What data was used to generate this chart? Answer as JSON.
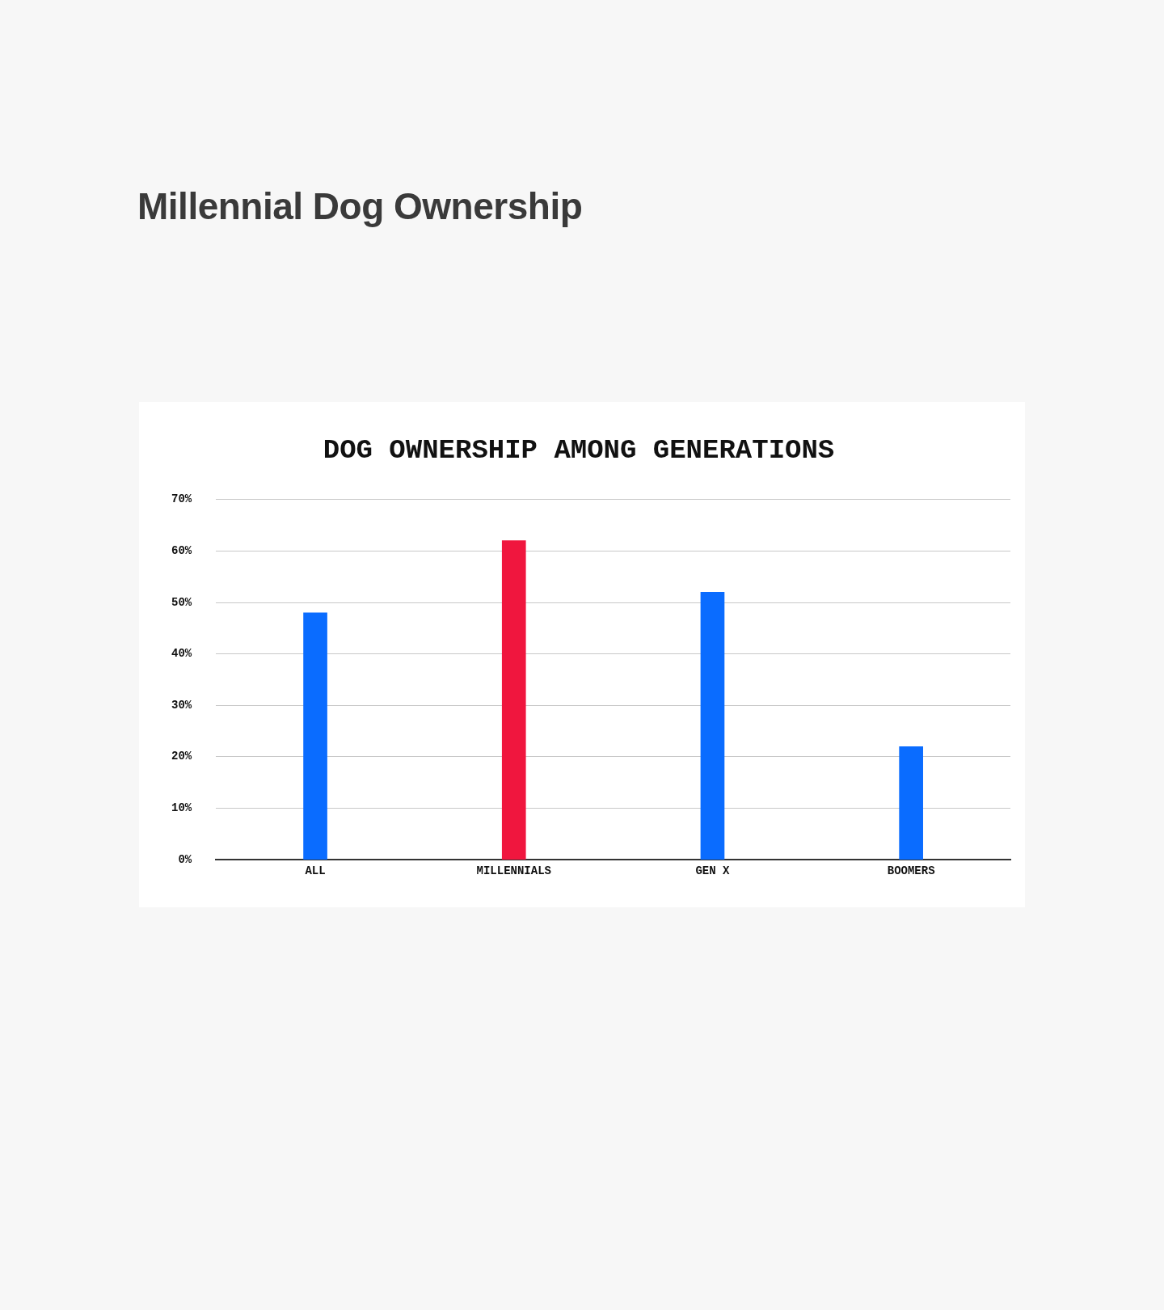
{
  "chart_data": {
    "type": "bar",
    "title": "Millennial Dog Ownership",
    "subtitle": "DOG OWNERSHIP AMONG GENERATIONS",
    "categories": [
      "ALL",
      "MILLENNIALS",
      "GEN X",
      "BOOMERS"
    ],
    "values": [
      48,
      62,
      52,
      22
    ],
    "colors": [
      "#0a6cff",
      "#f0163e",
      "#0a6cff",
      "#0a6cff"
    ],
    "ylim": [
      0,
      70
    ],
    "yticks": [
      {
        "value": 0,
        "label": "0%"
      },
      {
        "value": 10,
        "label": "10%"
      },
      {
        "value": 20,
        "label": "20%"
      },
      {
        "value": 30,
        "label": "30%"
      },
      {
        "value": 40,
        "label": "40%"
      },
      {
        "value": 50,
        "label": "50%"
      },
      {
        "value": 60,
        "label": "60%"
      },
      {
        "value": 70,
        "label": "70%"
      }
    ],
    "grid": "y"
  }
}
